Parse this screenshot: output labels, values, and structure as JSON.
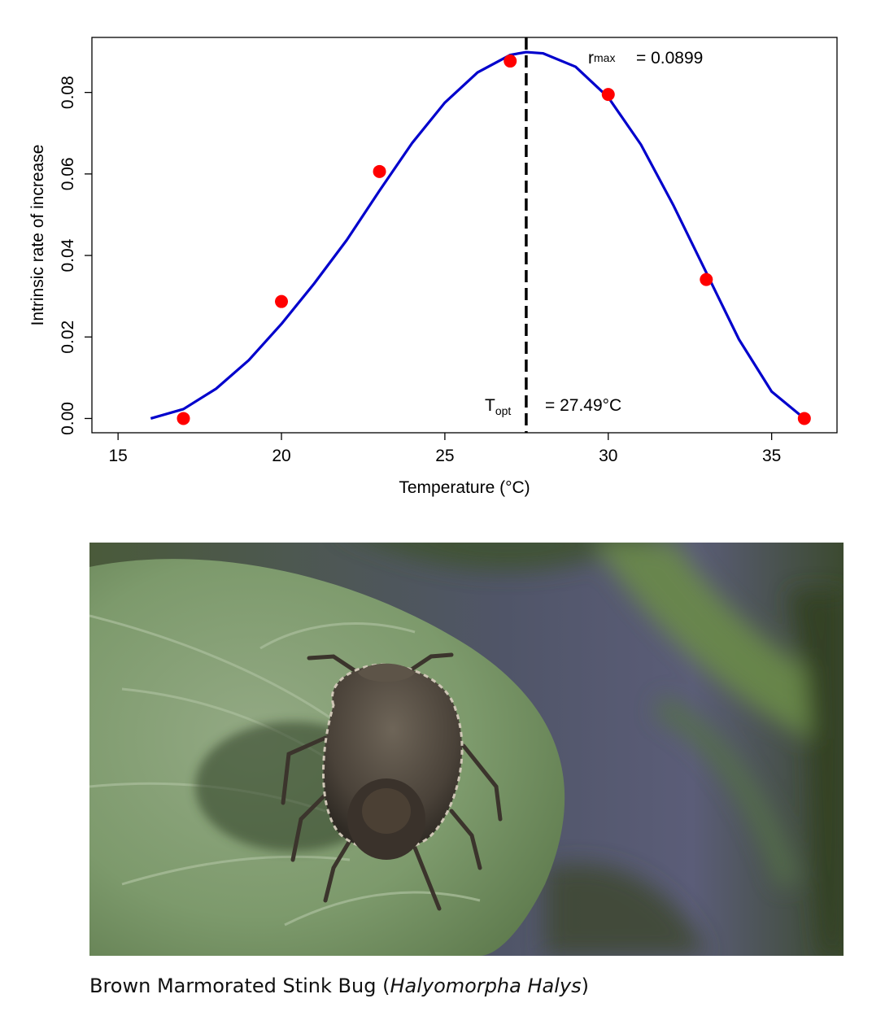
{
  "chart_data": {
    "type": "scatter",
    "xlabel": "Temperature (°C)",
    "ylabel": "Intrinsic rate of increase",
    "xlim": [
      14.2,
      37.0
    ],
    "ylim": [
      -0.0035,
      0.0935
    ],
    "x_ticks": [
      15,
      20,
      25,
      30,
      35
    ],
    "y_ticks": [
      0.0,
      0.02,
      0.04,
      0.06,
      0.08
    ],
    "x_tick_labels": [
      "15",
      "20",
      "25",
      "30",
      "35"
    ],
    "y_tick_labels": [
      "0.00",
      "0.02",
      "0.04",
      "0.06",
      "0.08"
    ],
    "grid": false,
    "points": {
      "color": "#ff0000",
      "x": [
        17,
        20,
        23,
        27,
        30,
        33,
        36
      ],
      "y": [
        0.0,
        0.0287,
        0.0606,
        0.0877,
        0.0795,
        0.0341,
        0.0
      ]
    },
    "curve": {
      "color": "#0000cc",
      "x": [
        16,
        17,
        18,
        19,
        20,
        21,
        22,
        23,
        24,
        25,
        26,
        27,
        27.49,
        28,
        29,
        30,
        31,
        32,
        33,
        34,
        35,
        36
      ],
      "y": [
        0.0,
        0.0023,
        0.0073,
        0.0143,
        0.0232,
        0.0331,
        0.0438,
        0.0559,
        0.0676,
        0.0775,
        0.0849,
        0.0892,
        0.0899,
        0.0896,
        0.0863,
        0.0788,
        0.0672,
        0.0522,
        0.0358,
        0.0194,
        0.0066,
        0.0
      ]
    },
    "vline": {
      "x": 27.49,
      "style": "dashed",
      "color": "#000000"
    },
    "annotations": {
      "rmax": {
        "base": "r",
        "sub": "max",
        "value": "= 0.0899"
      },
      "topt": {
        "base": "T",
        "sub": "opt",
        "value": "= 27.49°C"
      }
    }
  },
  "caption": {
    "prefix": "Brown Marmorated Stink Bug (",
    "species": "Halyomorpha Halys",
    "suffix": ")"
  }
}
